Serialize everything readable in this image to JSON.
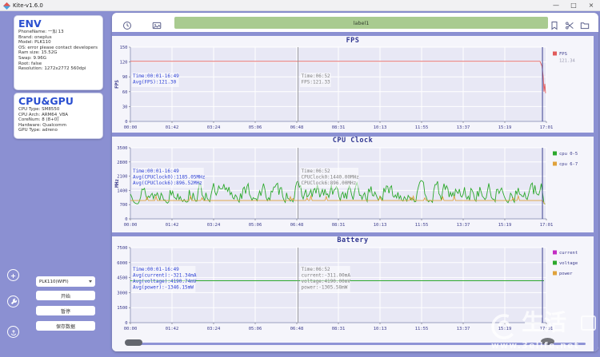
{
  "window": {
    "title": "Kite-v1.6.0",
    "minimize": "—",
    "maximize": "□",
    "close": "×"
  },
  "sidebar": {
    "env": {
      "title": "ENV",
      "lines": [
        "PhoneName: 一加 13",
        "Brand: oneplus",
        "Model: PLK110",
        "OS: error please contact developers",
        "Ram size: 15.52G",
        "Swap: 9.96G",
        "Root: false",
        "Resolution: 1272x2772 560dpi"
      ]
    },
    "cpugpu": {
      "title": "CPU&GPU",
      "lines": [
        "CPU Type: SM8550",
        "CPU Arch: ARM64_V8A",
        "CoreNum: 8 (8+0)",
        "Hardware: Qualcomm",
        "GPU Type: adreno"
      ]
    },
    "device_select": {
      "value": "PLK110(WIFI)"
    },
    "buttons": {
      "start": "开始",
      "pause": "暂停",
      "save": "保存数据"
    }
  },
  "toolbar": {
    "label": "label1"
  },
  "charts": [
    {
      "type": "line",
      "title": "FPS",
      "ylabel": "FPS",
      "ymax": 150,
      "yticks": [
        0,
        30,
        60,
        90,
        120,
        150
      ],
      "xticks": [
        "00:00",
        "01:42",
        "03:24",
        "05:06",
        "06:48",
        "08:31",
        "10:13",
        "11:55",
        "13:37",
        "15:19",
        "17:01"
      ],
      "series": [
        {
          "name": "FPS",
          "color": "#e15b5b",
          "type": "flat",
          "value": 121.3,
          "end_dip": 60
        }
      ],
      "legend": [
        {
          "label": "FPS",
          "color": "#e15b5b",
          "value": "121.34"
        }
      ],
      "annotation_left": [
        "Time:00:01-16:49",
        "Avg(FPS):121.30"
      ],
      "annotation_right": [
        "Time:06:52",
        "FPS:121.33"
      ]
    },
    {
      "type": "line",
      "title": "CPU Clock",
      "ylabel": "MHz",
      "ymax": 3500,
      "yticks": [
        0,
        700,
        1400,
        2100,
        2800,
        3500
      ],
      "xticks": [
        "00:00",
        "01:42",
        "03:24",
        "05:06",
        "06:48",
        "08:31",
        "10:13",
        "11:55",
        "13:37",
        "15:19",
        "17:01"
      ],
      "series": [
        {
          "name": "cpu 0-5",
          "color": "#2ca92c",
          "type": "noisy",
          "min": 720,
          "max": 2050,
          "avg": 1185.05,
          "seed": 13
        },
        {
          "name": "cpu 6-7",
          "color": "#e0a23c",
          "type": "flat_noise",
          "value": 900,
          "bump": 260,
          "seed": 5
        }
      ],
      "legend": [
        {
          "label": "cpu 0-5",
          "color": "#2ca92c"
        },
        {
          "label": "cpu 6-7",
          "color": "#e0a23c"
        }
      ],
      "annotation_left": [
        "Time:00:01-16:49",
        "Avg(CPUClock0):1185.05MHz",
        "Avg(CPUClock6):896.52MHz"
      ],
      "annotation_right": [
        "Time:06:52",
        "CPUClock0:1440.00MHz",
        "CPUClock6:896.00MHz"
      ]
    },
    {
      "type": "line",
      "title": "Battery",
      "ylabel": "",
      "ymax": 7500,
      "yticks": [
        0,
        1500,
        3000,
        4500,
        6000,
        7500
      ],
      "xticks": [
        "00:00",
        "01:42",
        "03:24",
        "05:06",
        "06:48",
        "08:31",
        "10:13",
        "11:55",
        "13:37",
        "15:19",
        "17:01"
      ],
      "series": [
        {
          "name": "voltage",
          "color": "#2ca92c",
          "type": "flat",
          "value": 4190
        }
      ],
      "legend": [
        {
          "label": "current",
          "color": "#c32cc3"
        },
        {
          "label": "voltage",
          "color": "#2ca92c"
        },
        {
          "label": "power",
          "color": "#e0a23c"
        }
      ],
      "annotation_left": [
        "Time:00:01-16:49",
        "Avg(current):-321.34mA",
        "Avg(voltage):4190.74mV",
        "Avg(power):-1346.15mW"
      ],
      "annotation_right": [
        "Time:06:52",
        "current:-311.00mA",
        "voltage:4190.00mV",
        "power:-1305.58mW"
      ]
    }
  ],
  "cursor": {
    "time": "06:52"
  },
  "watermark": {
    "brand": "生活",
    "url": "www.3elife.net"
  }
}
